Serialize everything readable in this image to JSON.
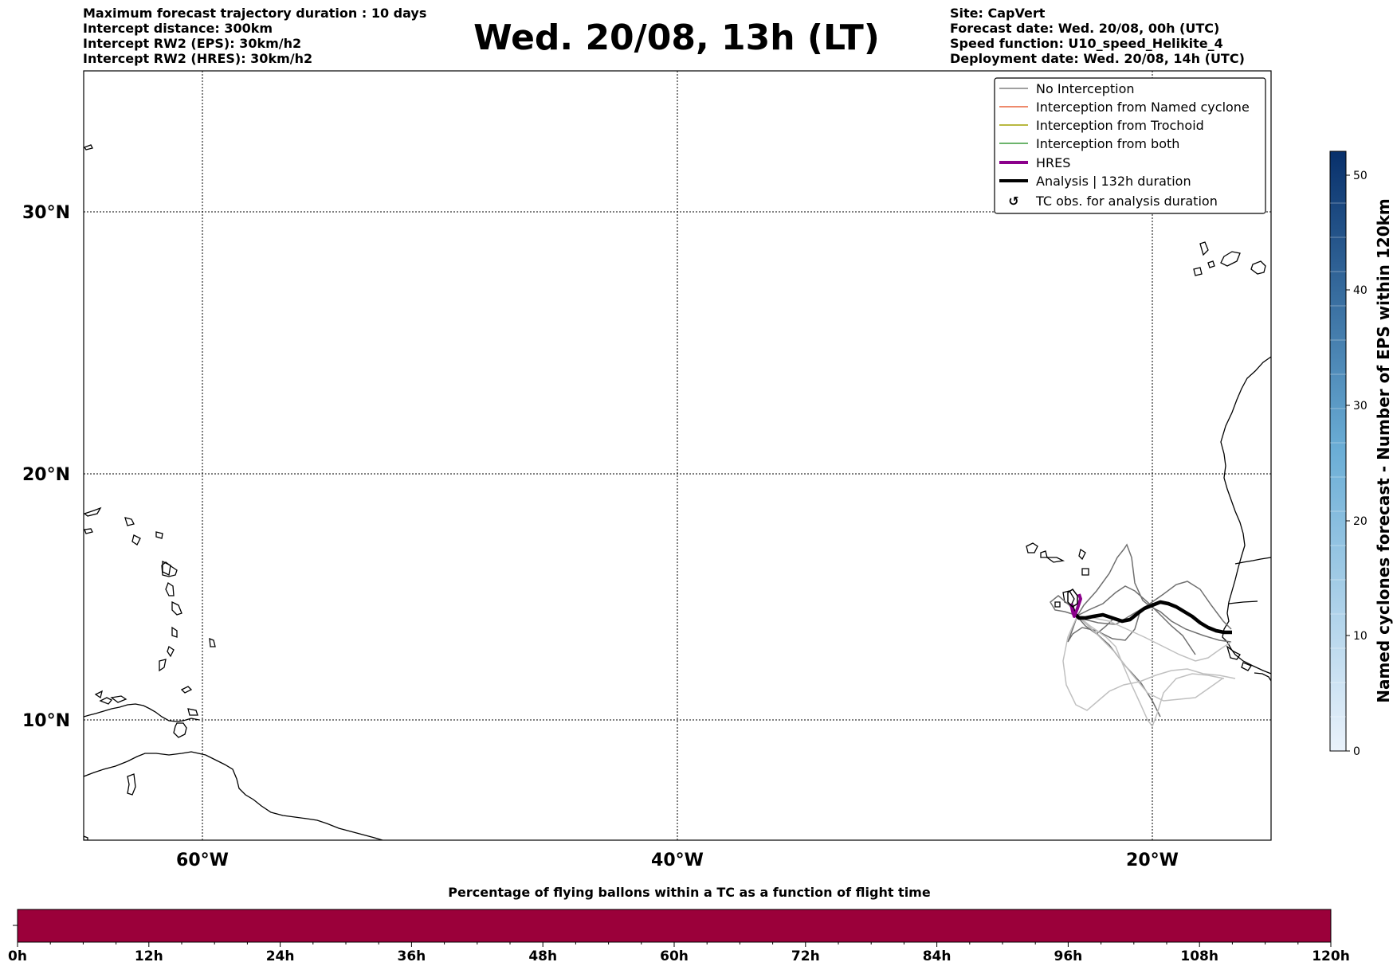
{
  "header_left": {
    "line1": "Maximum forecast trajectory duration : 10 days",
    "line2": "Intercept distance: 300km",
    "line3": "Intercept RW2 (EPS):  30km/h2",
    "line4": "Intercept RW2 (HRES): 30km/h2"
  },
  "title": "Wed. 20/08, 13h (LT)",
  "header_right": {
    "line1": "Site: CapVert",
    "line2": "Forecast date: Wed. 20/08, 00h (UTC)",
    "line3": "Speed function: U10_speed_Helikite_4",
    "line4": "Deployment date: Wed. 20/08, 14h (UTC)"
  },
  "map": {
    "lat_labels": [
      "30°N",
      "20°N",
      "10°N"
    ],
    "lon_labels": [
      "60°W",
      "40°W",
      "20°W"
    ],
    "legend": [
      {
        "label": "No Interception",
        "color": "#808080",
        "style": "thin"
      },
      {
        "label": "Interception from Named cyclone",
        "color": "#e8643c",
        "style": "thin"
      },
      {
        "label": "Interception from Trochoid",
        "color": "#a0a000",
        "style": "thin"
      },
      {
        "label": "Interception from both",
        "color": "#3c9c3c",
        "style": "thin"
      },
      {
        "label": "HRES",
        "color": "#8b008b",
        "style": "thick"
      },
      {
        "label": "Analysis | 132h duration",
        "color": "#000000",
        "style": "thick"
      },
      {
        "label": "TC obs. for analysis duration",
        "color": "#000000",
        "style": "symbol"
      }
    ]
  },
  "colorbar": {
    "label": "Named cyclones forecast - Number of EPS within 120km",
    "ticks": [
      "0",
      "10",
      "20",
      "30",
      "40",
      "50"
    ],
    "color_low": "#eaf2fb",
    "color_high": "#08306b"
  },
  "bottom_bar": {
    "title": "Percentage of flying ballons within a TC as a function of flight time",
    "bar_color": "#9b003a",
    "ticks": [
      "0h",
      "12h",
      "24h",
      "36h",
      "48h",
      "60h",
      "72h",
      "84h",
      "96h",
      "108h",
      "120h"
    ]
  }
}
